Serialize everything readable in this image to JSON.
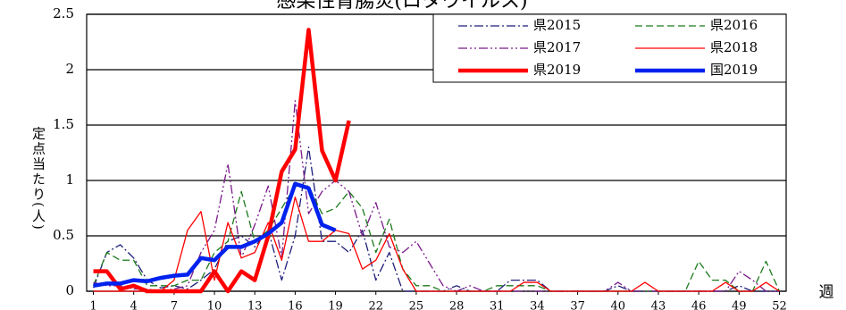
{
  "chart_data": {
    "type": "line",
    "title": "感染性胃腸炎(ロタウイルス)",
    "y_label": "定点当たり(人)",
    "x_label": "週",
    "x": [
      1,
      2,
      3,
      4,
      5,
      6,
      7,
      8,
      9,
      10,
      11,
      12,
      13,
      14,
      15,
      16,
      17,
      18,
      19,
      20,
      21,
      22,
      23,
      24,
      25,
      26,
      27,
      28,
      29,
      30,
      31,
      32,
      33,
      34,
      35,
      36,
      37,
      38,
      39,
      40,
      41,
      42,
      43,
      44,
      45,
      46,
      47,
      48,
      49,
      50,
      51,
      52
    ],
    "xlim": [
      0.5,
      52.5
    ],
    "xticks": [
      1,
      4,
      7,
      10,
      13,
      16,
      19,
      22,
      25,
      28,
      31,
      34,
      37,
      40,
      43,
      46,
      49,
      52
    ],
    "ylim": [
      0,
      2.5
    ],
    "yticks": [
      0,
      0.5,
      1,
      1.5,
      2,
      2.5
    ],
    "grid": true,
    "legend": "top-right",
    "series": [
      {
        "name": "県2015",
        "color": "#1f1f7a",
        "dash": "10 3 2 3",
        "width": 1.3,
        "values": [
          0.03,
          0.35,
          0.42,
          0.3,
          0.1,
          0.03,
          0.05,
          0.02,
          0.1,
          0.2,
          0.45,
          0.5,
          0.4,
          0.55,
          0.1,
          0.5,
          1.3,
          0.45,
          0.45,
          0.35,
          0.55,
          0.1,
          0.35,
          0,
          0,
          0,
          0,
          0.05,
          0,
          0,
          0,
          0.1,
          0.1,
          0.1,
          0,
          0,
          0,
          0,
          0,
          0.05,
          0,
          0,
          0,
          0,
          0,
          0,
          0,
          0,
          0.05,
          0,
          0,
          0
        ]
      },
      {
        "name": "県2016",
        "color": "#1a7a1a",
        "dash": "8 4",
        "width": 1.3,
        "values": [
          0.05,
          0.35,
          0.28,
          0.28,
          0.05,
          0.05,
          0.05,
          0.1,
          0.1,
          0.35,
          0.45,
          0.9,
          0.45,
          0.55,
          0.75,
          0.95,
          0.95,
          0.7,
          0.75,
          0.9,
          0.75,
          0.35,
          0.65,
          0.2,
          0.05,
          0.05,
          0,
          0,
          0,
          0,
          0.05,
          0.05,
          0.05,
          0.05,
          0,
          0,
          0,
          0,
          0,
          0,
          0,
          0,
          0,
          0,
          0,
          0.27,
          0.1,
          0.1,
          0,
          0,
          0.27,
          0
        ]
      },
      {
        "name": "県2017",
        "color": "#7a1a8a",
        "dash": "10 3 2 3 2 3",
        "width": 1.3,
        "values": [
          0.08,
          0.05,
          0.05,
          0.02,
          0.02,
          0,
          0.02,
          0.05,
          0.35,
          0.55,
          1.15,
          0.3,
          0.6,
          0.95,
          0.3,
          1.72,
          0.7,
          0.9,
          1.0,
          0.9,
          0.5,
          0.8,
          0.4,
          0.35,
          0.45,
          0.25,
          0.05,
          0,
          0.05,
          0,
          0,
          0,
          0,
          0,
          0,
          0,
          0,
          0,
          0,
          0.08,
          0,
          0,
          0,
          0,
          0,
          0,
          0,
          0,
          0.18,
          0.1,
          0,
          0
        ]
      },
      {
        "name": "県2018",
        "color": "#ff0000",
        "dash": "none",
        "width": 1.3,
        "values": [
          0,
          0,
          0,
          0,
          0,
          0,
          0.1,
          0.55,
          0.72,
          0.1,
          0.62,
          0.3,
          0.35,
          0.62,
          0.28,
          0.85,
          0.45,
          0.45,
          0.55,
          0.52,
          0.2,
          0.28,
          0.52,
          0.2,
          0,
          0,
          0,
          0,
          0,
          0,
          0,
          0,
          0.08,
          0.08,
          0,
          0,
          0,
          0,
          0,
          0,
          0,
          0.08,
          0,
          0,
          0,
          0,
          0,
          0.08,
          0,
          0,
          0.08,
          0
        ]
      },
      {
        "name": "県2019",
        "color": "#ff0000",
        "dash": "none",
        "width": 4.5,
        "values": [
          0.18,
          0.18,
          0.02,
          0.05,
          0,
          0,
          0,
          0,
          0,
          0.18,
          0,
          0.18,
          0.1,
          0.5,
          1.08,
          1.28,
          2.36,
          1.27,
          1.0,
          1.54,
          null,
          null,
          null,
          null,
          null,
          null,
          null,
          null,
          null,
          null,
          null,
          null,
          null,
          null,
          null,
          null,
          null,
          null,
          null,
          null,
          null,
          null,
          null,
          null,
          null,
          null,
          null,
          null,
          null,
          null,
          null,
          null
        ]
      },
      {
        "name": "国2019",
        "color": "#0022ee",
        "dash": "none",
        "width": 4.5,
        "values": [
          0.05,
          0.07,
          0.07,
          0.1,
          0.09,
          0.12,
          0.14,
          0.15,
          0.3,
          0.28,
          0.4,
          0.4,
          0.45,
          0.52,
          0.62,
          0.97,
          0.93,
          0.6,
          0.55,
          null,
          null,
          null,
          null,
          null,
          null,
          null,
          null,
          null,
          null,
          null,
          null,
          null,
          null,
          null,
          null,
          null,
          null,
          null,
          null,
          null,
          null,
          null,
          null,
          null,
          null,
          null,
          null,
          null,
          null,
          null,
          null,
          null
        ]
      }
    ]
  }
}
